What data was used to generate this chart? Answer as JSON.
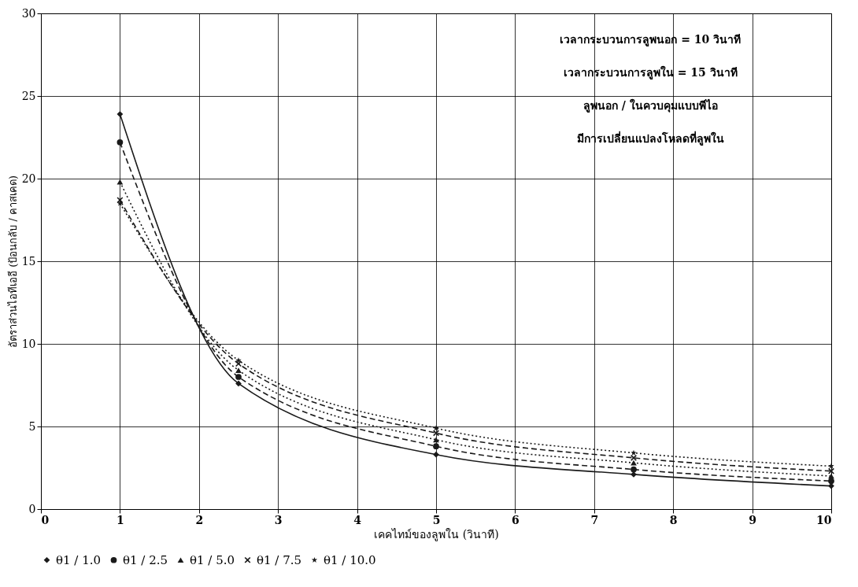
{
  "chart_data": {
    "type": "line",
    "xlabel": "เคคไทม์ของลูพใน (วินาที)",
    "ylabel": "อัตราส่วนไอทีเออี (ป้อนกลับ / คาสเคด)",
    "x": [
      1,
      2.5,
      5,
      7.5,
      10
    ],
    "xlim": [
      0,
      10
    ],
    "xticks": [
      0,
      1,
      2,
      3,
      4,
      5,
      6,
      7,
      8,
      9,
      10
    ],
    "ylim": [
      0,
      30
    ],
    "yticks": [
      0,
      5,
      10,
      15,
      20,
      25,
      30
    ],
    "grid": true,
    "legend": "bottom",
    "annotations": [
      "เวลากระบวนการลูพนอก = 10 วินาที",
      "เวลากระบวนการลูพใน    = 15 วินาที",
      "ลูพนอก / ในควบคุมแบบพีไอ",
      "มีการเปลี่ยนแปลงโหลดที่ลูพใน"
    ],
    "series": [
      {
        "name": "θ1 / 1.0",
        "color": "#1a1a1a",
        "marker": "diamond",
        "line_style": "solid",
        "values": [
          23.9,
          7.6,
          3.3,
          2.1,
          1.4
        ]
      },
      {
        "name": "θ1 / 2.5",
        "color": "#1a1a1a",
        "marker": "circle",
        "line_style": "dashed",
        "values": [
          22.2,
          8.0,
          3.8,
          2.4,
          1.7
        ]
      },
      {
        "name": "θ1 / 5.0",
        "color": "#1a1a1a",
        "marker": "triangle",
        "line_style": "dotted",
        "values": [
          19.8,
          8.4,
          4.2,
          2.8,
          2.0
        ]
      },
      {
        "name": "θ1 / 7.5",
        "color": "#1a1a1a",
        "marker": "cross",
        "line_style": "dashed",
        "values": [
          18.7,
          8.8,
          4.6,
          3.1,
          2.3
        ]
      },
      {
        "name": "θ1 / 10.0",
        "color": "#1a1a1a",
        "marker": "star",
        "line_style": "dotted",
        "values": [
          18.5,
          9.0,
          4.9,
          3.4,
          2.6
        ]
      }
    ]
  }
}
